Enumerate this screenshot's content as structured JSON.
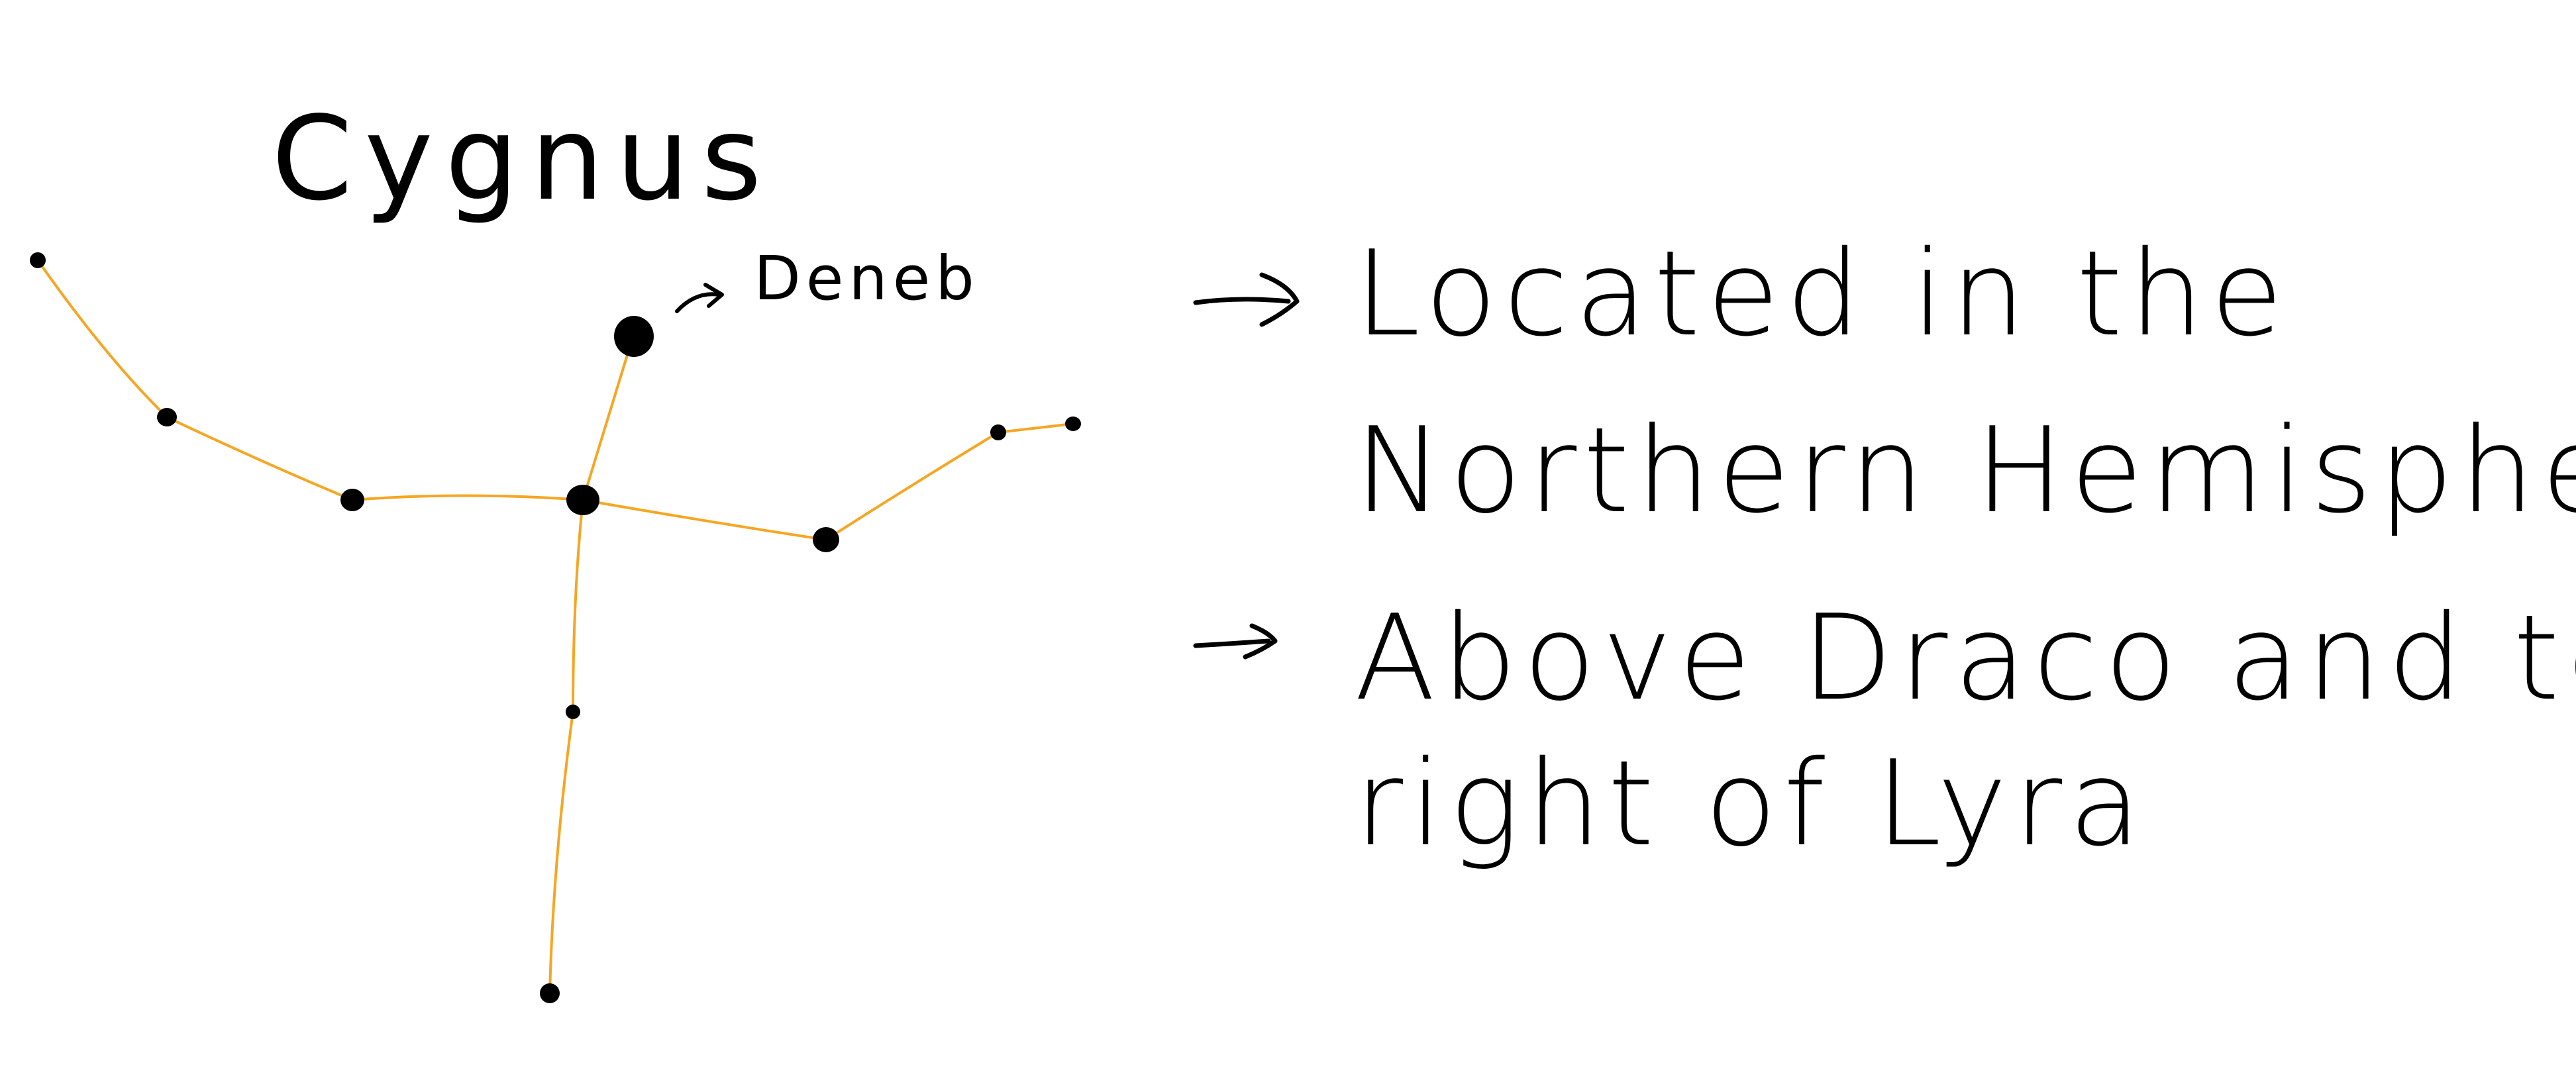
{
  "title": "Cygnus",
  "star_label": "Deneb",
  "notes": [
    {
      "lines": [
        "Located in the",
        "Northern Hemisphere"
      ]
    },
    {
      "lines": [
        "Above Draco and to the",
        "right of Lyra"
      ]
    }
  ],
  "colors": {
    "background": "#ffffff",
    "ink": "#000000",
    "constellation_line": "#f5a623"
  },
  "icons": [
    "arrow-right-icon"
  ]
}
